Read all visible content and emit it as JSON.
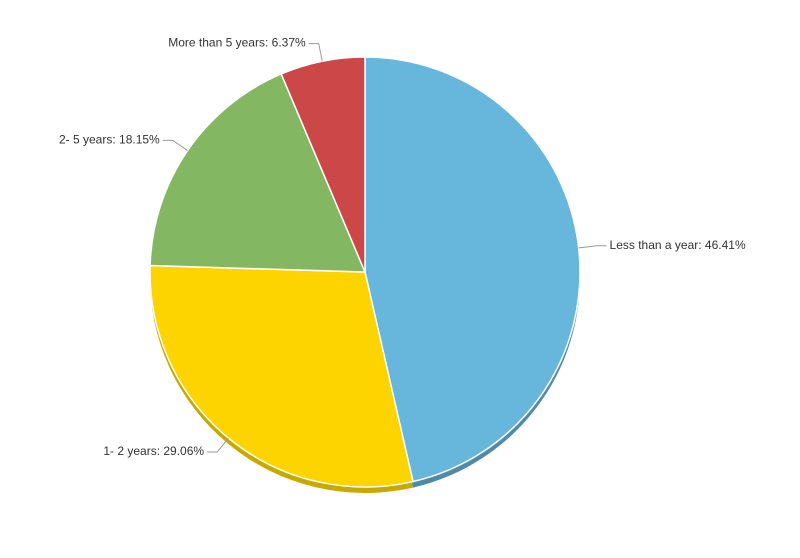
{
  "chart_data": {
    "type": "pie",
    "categories": [
      "Less than a year",
      "1- 2 years",
      "2- 5 years",
      "More than 5 years"
    ],
    "values": [
      46.41,
      29.06,
      18.15,
      6.37
    ],
    "value_labels": [
      "46.41%",
      "29.06%",
      "18.15%",
      "6.37%"
    ],
    "label_separator": ": ",
    "colors": [
      "#67b6dc",
      "#fdd400",
      "#84b761",
      "#cc4748"
    ],
    "shadow_colors": [
      "#4f8ba8",
      "#c9a800",
      "#668e4b",
      "#9e3637"
    ]
  }
}
